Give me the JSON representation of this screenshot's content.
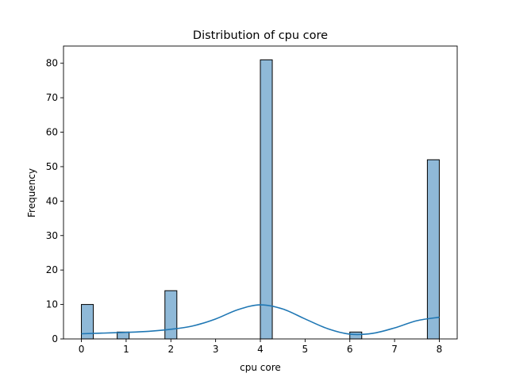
{
  "chart_data": {
    "type": "bar",
    "title": "Distribution of cpu core",
    "xlabel": "cpu core",
    "ylabel": "Frequency",
    "xlim": [
      -0.4,
      8.4
    ],
    "ylim": [
      0,
      85
    ],
    "x_ticks": [
      0,
      1,
      2,
      3,
      4,
      5,
      6,
      7,
      8
    ],
    "y_ticks": [
      0,
      10,
      20,
      30,
      40,
      50,
      60,
      70,
      80
    ],
    "bin_width": 0.2667,
    "bars": [
      {
        "x_start": 0.0,
        "value": 10
      },
      {
        "x_start": 0.8,
        "value": 2
      },
      {
        "x_start": 1.867,
        "value": 14
      },
      {
        "x_start": 4.0,
        "value": 81
      },
      {
        "x_start": 6.0,
        "value": 2
      },
      {
        "x_start": 7.733,
        "value": 52
      }
    ],
    "kde": {
      "x": [
        0,
        0.5,
        1,
        1.5,
        2,
        2.5,
        3,
        3.5,
        4,
        4.5,
        5,
        5.5,
        6,
        6.5,
        7,
        7.5,
        8
      ],
      "y": [
        1.5,
        1.7,
        1.9,
        2.2,
        2.8,
        3.8,
        5.8,
        8.5,
        9.9,
        8.7,
        5.8,
        3.0,
        1.4,
        1.6,
        3.2,
        5.3,
        6.3
      ]
    },
    "colors": {
      "bar_fill": "#8fb9d8",
      "bar_edge": "#000000",
      "kde_line": "#1f77b4"
    },
    "grid": false,
    "legend": "none"
  }
}
